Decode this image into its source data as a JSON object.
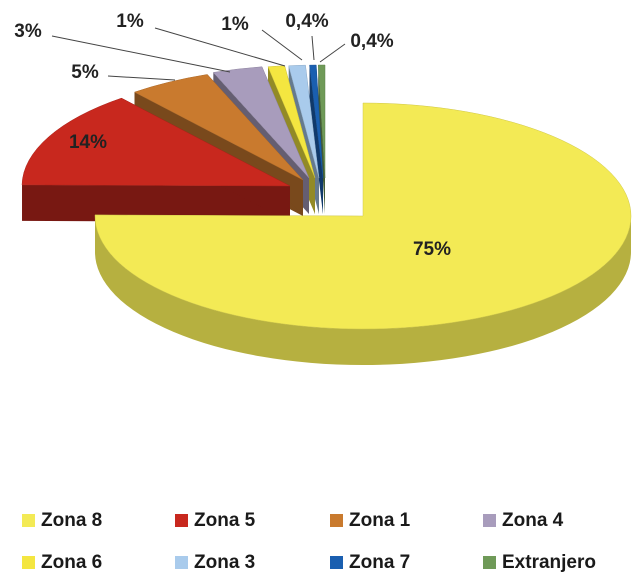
{
  "chart_data": {
    "type": "pie3d",
    "categories": [
      "Zona 8",
      "Zona 5",
      "Zona 1",
      "Zona 4",
      "Zona 6",
      "Zona 3",
      "Zona 7",
      "Extranjero"
    ],
    "values": [
      75,
      14,
      5,
      3,
      1,
      1,
      0.4,
      0.4
    ],
    "value_labels": [
      "75%",
      "14%",
      "5%",
      "3%",
      "1%",
      "1%",
      "0,4%",
      "0,4%"
    ],
    "colors": [
      "#f3ea55",
      "#c8281e",
      "#c97a2e",
      "#a89cbc",
      "#f4e640",
      "#a9cbec",
      "#1a5fb0",
      "#6f9a58"
    ],
    "legend": "bottom"
  }
}
